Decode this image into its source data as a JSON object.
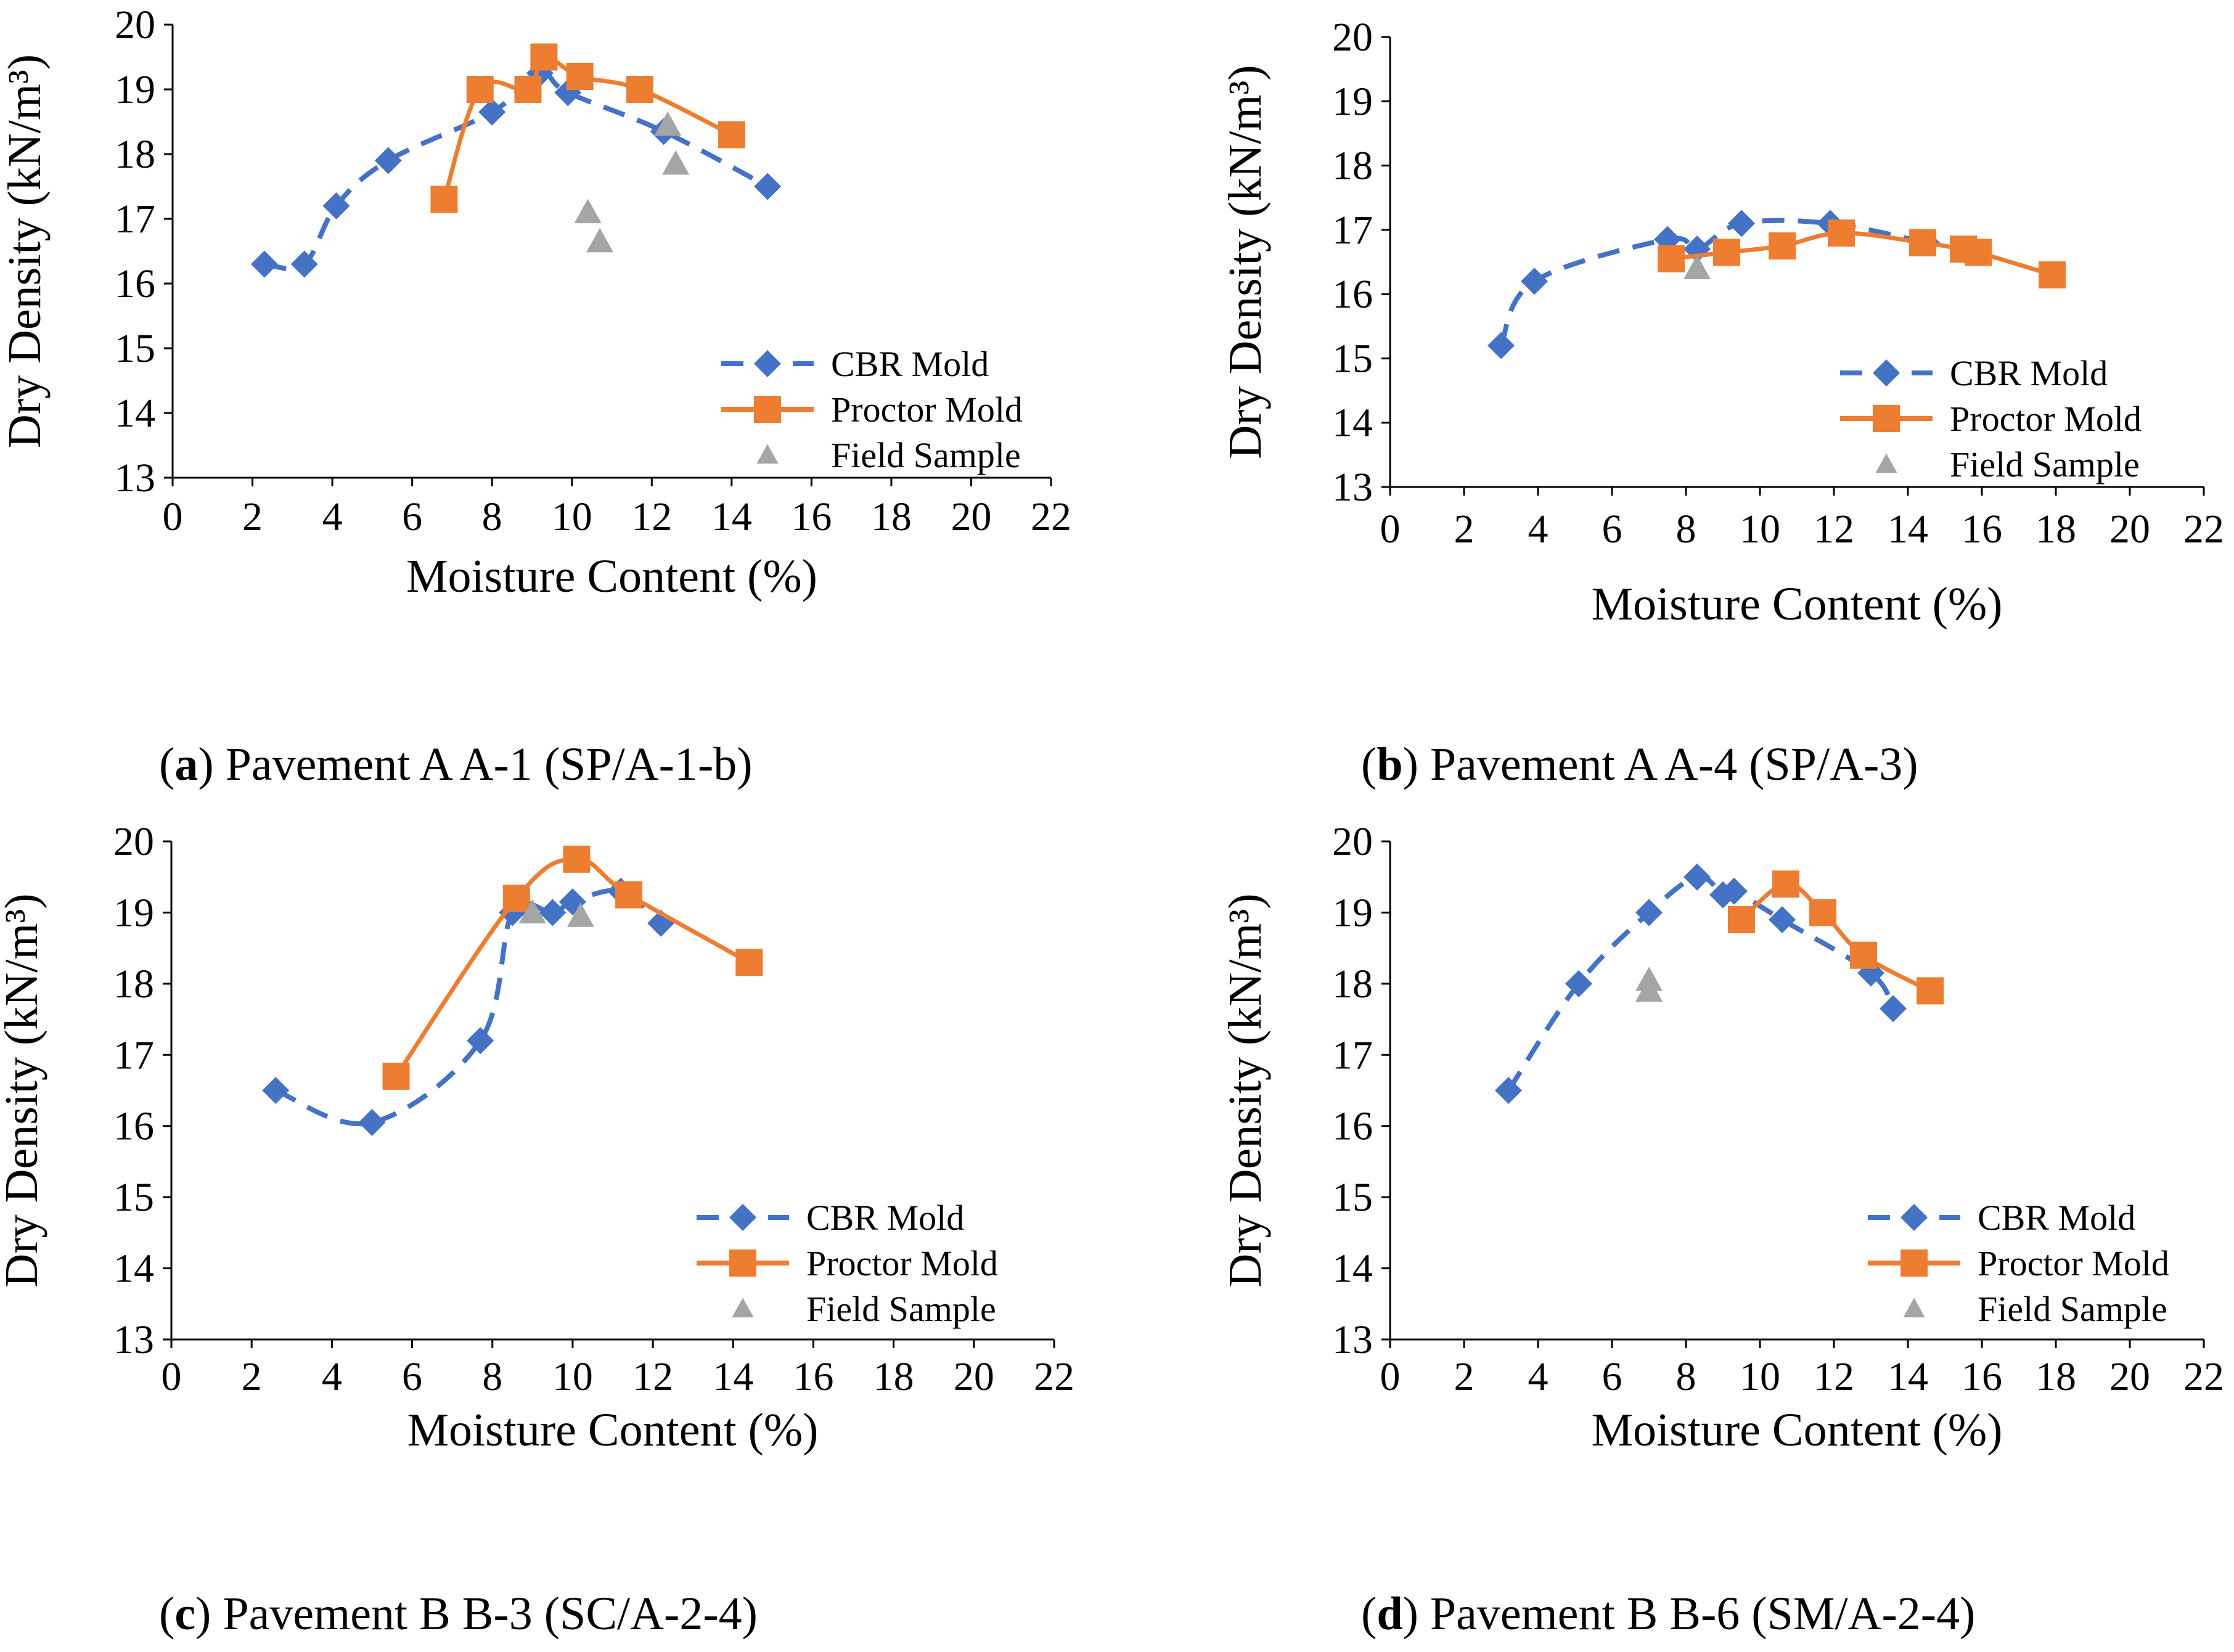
{
  "figure": {
    "legend_labels": {
      "cbr": "CBR Mold",
      "proctor": "Proctor Mold",
      "field": "Field Sample"
    },
    "colors": {
      "cbr": "#4472C4",
      "proctor": "#ED7D31",
      "field": "#A5A5A5",
      "axis": "#000000"
    },
    "captions": [
      {
        "letter": "a",
        "text": ") Pavement A A-1 (SP/A-1-b)"
      },
      {
        "letter": "b",
        "text": ") Pavement A A-4 (SP/A-3)"
      },
      {
        "letter": "c",
        "text": ") Pavement B B-3 (SC/A-2-4)"
      },
      {
        "letter": "d",
        "text": ") Pavement B B-6 (SM/A-2-4)"
      }
    ]
  },
  "chart_data": [
    {
      "id": "a",
      "type": "scatter",
      "title": "(a) Pavement A A-1 (SP/A-1-b)",
      "xlabel": "Moisture Content (%)",
      "ylabel": "Dry Density (kN/m³)",
      "xlim": [
        0,
        22
      ],
      "ylim": [
        13,
        20
      ],
      "xticks": [
        "0",
        "2",
        "4",
        "6",
        "8",
        "10",
        "12",
        "14",
        "16",
        "18",
        "20",
        "22"
      ],
      "yticks": [
        "13",
        "14",
        "15",
        "16",
        "17",
        "18",
        "19",
        "20"
      ],
      "grid": false,
      "legend": "bottom-right",
      "series": [
        {
          "name": "CBR Mold",
          "marker": "diamond",
          "line": "dashed-smooth",
          "x": [
            2.3,
            3.3,
            4.1,
            5.4,
            8.0,
            9.2,
            9.9,
            12.3,
            14.9
          ],
          "y": [
            16.3,
            16.3,
            17.2,
            17.9,
            18.65,
            19.25,
            18.95,
            18.35,
            17.5
          ]
        },
        {
          "name": "Proctor Mold",
          "marker": "square",
          "line": "solid-smooth",
          "x": [
            6.8,
            7.7,
            8.9,
            9.3,
            10.2,
            11.7,
            14.0
          ],
          "y": [
            17.3,
            19.0,
            19.0,
            19.5,
            19.2,
            19.0,
            18.3
          ]
        },
        {
          "name": "Field Sample",
          "marker": "triangle",
          "line": "none",
          "x": [
            10.4,
            10.7,
            12.4,
            12.6
          ],
          "y": [
            17.1,
            16.65,
            18.45,
            17.85
          ]
        }
      ]
    },
    {
      "id": "b",
      "type": "scatter",
      "title": "(b) Pavement A A-4 (SP/A-3)",
      "xlabel": "Moisture Content (%)",
      "ylabel": "Dry Density (kN/m³)",
      "xlim": [
        0,
        22
      ],
      "ylim": [
        13,
        20
      ],
      "xticks": [
        "0",
        "2",
        "4",
        "6",
        "8",
        "10",
        "12",
        "14",
        "16",
        "18",
        "20",
        "22"
      ],
      "yticks": [
        "13",
        "14",
        "15",
        "16",
        "17",
        "18",
        "19",
        "20"
      ],
      "grid": false,
      "legend": "bottom-right",
      "series": [
        {
          "name": "CBR Mold",
          "marker": "diamond",
          "line": "dashed-smooth",
          "x": [
            3.0,
            3.9,
            7.5,
            8.3,
            9.5,
            11.9,
            14.5
          ],
          "y": [
            15.2,
            16.2,
            16.85,
            16.7,
            17.1,
            17.1,
            16.8
          ]
        },
        {
          "name": "Proctor Mold",
          "marker": "square",
          "line": "solid-smooth",
          "x": [
            7.6,
            9.1,
            10.6,
            12.2,
            14.4,
            15.5,
            15.9,
            17.9
          ],
          "y": [
            16.55,
            16.65,
            16.75,
            16.95,
            16.8,
            16.7,
            16.65,
            16.3
          ]
        },
        {
          "name": "Field Sample",
          "marker": "triangle",
          "line": "none",
          "x": [
            8.3
          ],
          "y": [
            16.4
          ]
        }
      ]
    },
    {
      "id": "c",
      "type": "scatter",
      "title": "(c) Pavement B B-3 (SC/A-2-4)",
      "xlabel": "Moisture Content (%)",
      "ylabel": "Dry Density (kN/m³)",
      "xlim": [
        0,
        22
      ],
      "ylim": [
        13,
        20
      ],
      "xticks": [
        "0",
        "2",
        "4",
        "6",
        "8",
        "10",
        "12",
        "14",
        "16",
        "18",
        "20",
        "22"
      ],
      "yticks": [
        "13",
        "14",
        "15",
        "16",
        "17",
        "18",
        "19",
        "20"
      ],
      "grid": false,
      "legend": "bottom-right",
      "series": [
        {
          "name": "CBR Mold",
          "marker": "diamond",
          "line": "dashed-smooth",
          "x": [
            2.6,
            5.0,
            7.7,
            8.5,
            9.5,
            10.0,
            11.2,
            12.2
          ],
          "y": [
            16.5,
            16.05,
            17.2,
            19.0,
            19.0,
            19.15,
            19.3,
            18.85
          ]
        },
        {
          "name": "Proctor Mold",
          "marker": "square",
          "line": "solid-smooth",
          "x": [
            5.6,
            8.6,
            10.1,
            11.4,
            14.4
          ],
          "y": [
            16.7,
            19.2,
            19.75,
            19.25,
            18.3
          ]
        },
        {
          "name": "Field Sample",
          "marker": "triangle",
          "line": "none",
          "x": [
            9.0,
            10.2
          ],
          "y": [
            19.0,
            18.95
          ]
        }
      ]
    },
    {
      "id": "d",
      "type": "scatter",
      "title": "(d) Pavement B B-6 (SM/A-2-4)",
      "xlabel": "Moisture Content (%)",
      "ylabel": "Dry Density (kN/m³)",
      "xlim": [
        0,
        22
      ],
      "ylim": [
        13,
        20
      ],
      "xticks": [
        "0",
        "2",
        "4",
        "6",
        "8",
        "10",
        "12",
        "14",
        "16",
        "18",
        "20",
        "22"
      ],
      "yticks": [
        "13",
        "14",
        "15",
        "16",
        "17",
        "18",
        "19",
        "20"
      ],
      "grid": false,
      "legend": "bottom-right",
      "series": [
        {
          "name": "CBR Mold",
          "marker": "diamond",
          "line": "dashed-smooth",
          "x": [
            3.2,
            5.1,
            7.0,
            8.3,
            9.0,
            9.3,
            10.6,
            13.0,
            13.6
          ],
          "y": [
            16.5,
            18.0,
            19.0,
            19.5,
            19.25,
            19.3,
            18.9,
            18.15,
            17.65
          ]
        },
        {
          "name": "Proctor Mold",
          "marker": "square",
          "line": "solid-smooth",
          "x": [
            9.5,
            10.7,
            11.7,
            12.8,
            14.6
          ],
          "y": [
            18.9,
            19.4,
            19.0,
            18.4,
            17.9
          ]
        },
        {
          "name": "Field Sample",
          "marker": "triangle",
          "line": "none",
          "x": [
            7.0,
            7.0
          ],
          "y": [
            18.05,
            17.9
          ]
        }
      ]
    }
  ]
}
